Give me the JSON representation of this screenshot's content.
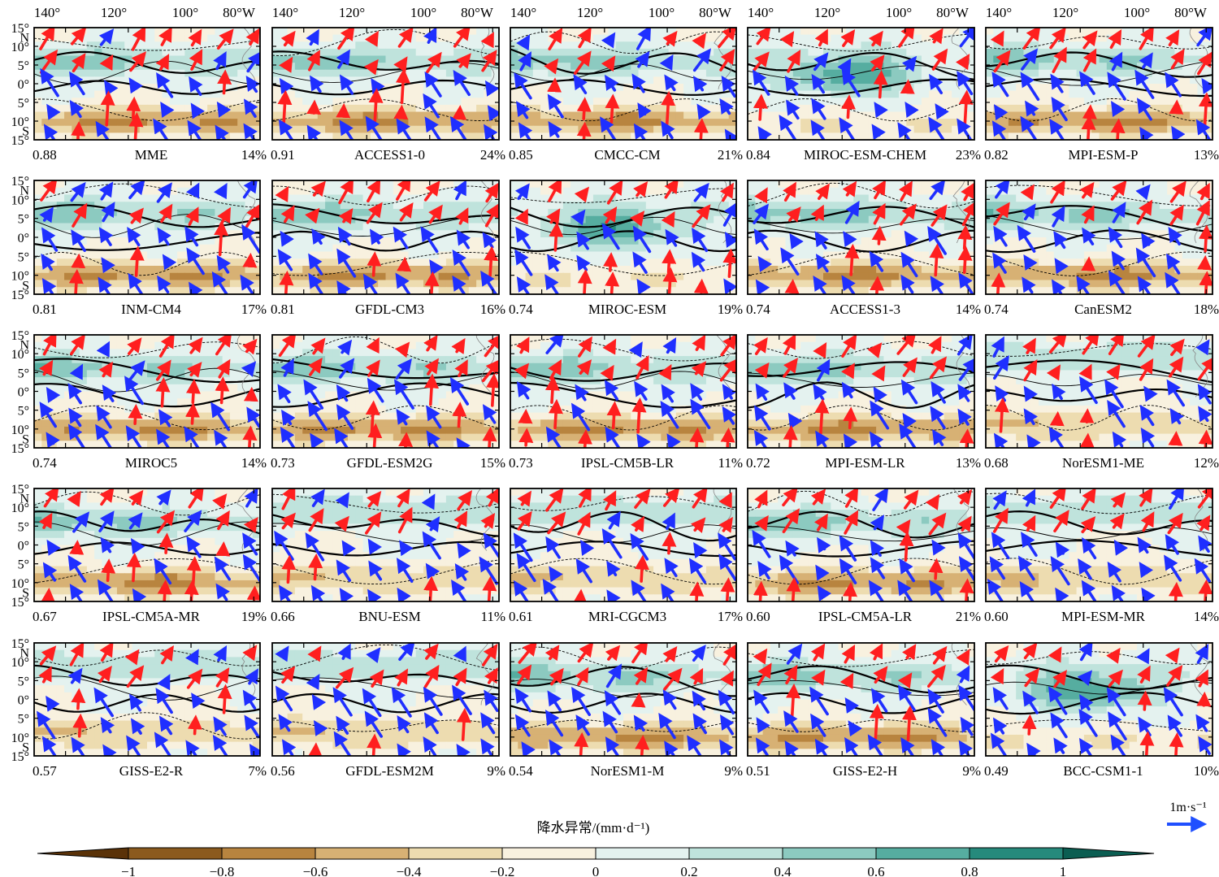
{
  "figure": {
    "lon_ticks": [
      "140°",
      "120°",
      "100°",
      "80°W"
    ],
    "lat_ticks_top": "15°",
    "lat_ticks": [
      {
        "lat": 15,
        "label": "15°"
      },
      {
        "lat": 12.5,
        "label": "N"
      },
      {
        "lat": 10,
        "label": "10°"
      },
      {
        "lat": 5,
        "label": "5°"
      },
      {
        "lat": 0,
        "label": "0°"
      },
      {
        "lat": -5,
        "label": "5°"
      },
      {
        "lat": -10,
        "label": "10°"
      },
      {
        "lat": -12.5,
        "label": "S"
      },
      {
        "lat": -15,
        "label": "15°"
      }
    ],
    "panels": [
      {
        "corr": "0.88",
        "model": "MME",
        "pct": "14%",
        "style": "A",
        "seed": 1
      },
      {
        "corr": "0.91",
        "model": "ACCESS1-0",
        "pct": "24%",
        "style": "A",
        "seed": 2
      },
      {
        "corr": "0.85",
        "model": "CMCC-CM",
        "pct": "21%",
        "style": "A",
        "seed": 3
      },
      {
        "corr": "0.84",
        "model": "MIROC-ESM-CHEM",
        "pct": "23%",
        "style": "C",
        "seed": 4
      },
      {
        "corr": "0.82",
        "model": "MPI-ESM-P",
        "pct": "13%",
        "style": "A",
        "seed": 5
      },
      {
        "corr": "0.81",
        "model": "INM-CM4",
        "pct": "17%",
        "style": "A",
        "seed": 6
      },
      {
        "corr": "0.81",
        "model": "GFDL-CM3",
        "pct": "16%",
        "style": "A",
        "seed": 7
      },
      {
        "corr": "0.74",
        "model": "MIROC-ESM",
        "pct": "19%",
        "style": "C",
        "seed": 8
      },
      {
        "corr": "0.74",
        "model": "ACCESS1-3",
        "pct": "14%",
        "style": "A",
        "seed": 9
      },
      {
        "corr": "0.74",
        "model": "CanESM2",
        "pct": "18%",
        "style": "A",
        "seed": 10
      },
      {
        "corr": "0.74",
        "model": "MIROC5",
        "pct": "14%",
        "style": "A",
        "seed": 11
      },
      {
        "corr": "0.73",
        "model": "GFDL-ESM2G",
        "pct": "15%",
        "style": "A",
        "seed": 12
      },
      {
        "corr": "0.73",
        "model": "IPSL-CM5B-LR",
        "pct": "11%",
        "style": "A",
        "seed": 13
      },
      {
        "corr": "0.72",
        "model": "MPI-ESM-LR",
        "pct": "13%",
        "style": "A",
        "seed": 14
      },
      {
        "corr": "0.68",
        "model": "NorESM1-ME",
        "pct": "12%",
        "style": "B",
        "seed": 15
      },
      {
        "corr": "0.67",
        "model": "IPSL-CM5A-MR",
        "pct": "19%",
        "style": "A",
        "seed": 16
      },
      {
        "corr": "0.66",
        "model": "BNU-ESM",
        "pct": "11%",
        "style": "B",
        "seed": 17
      },
      {
        "corr": "0.61",
        "model": "MRI-CGCM3",
        "pct": "17%",
        "style": "B",
        "seed": 18
      },
      {
        "corr": "0.60",
        "model": "IPSL-CM5A-LR",
        "pct": "21%",
        "style": "A",
        "seed": 19
      },
      {
        "corr": "0.60",
        "model": "MPI-ESM-MR",
        "pct": "14%",
        "style": "B",
        "seed": 20
      },
      {
        "corr": "0.57",
        "model": "GISS-E2-R",
        "pct": "7%",
        "style": "B",
        "seed": 21
      },
      {
        "corr": "0.56",
        "model": "GFDL-ESM2M",
        "pct": "9%",
        "style": "B",
        "seed": 22
      },
      {
        "corr": "0.54",
        "model": "NorESM1-M",
        "pct": "9%",
        "style": "A",
        "seed": 23
      },
      {
        "corr": "0.51",
        "model": "GISS-E2-H",
        "pct": "9%",
        "style": "A",
        "seed": 24
      },
      {
        "corr": "0.49",
        "model": "BCC-CSM1-1",
        "pct": "10%",
        "style": "C",
        "seed": 25
      }
    ]
  },
  "colorbar": {
    "title": "降水异常/(mm·d⁻¹)",
    "ticks": [
      "−1",
      "−0.8",
      "−0.6",
      "−0.4",
      "−0.2",
      "0",
      "0.2",
      "0.4",
      "0.6",
      "0.8",
      "1"
    ],
    "colors": [
      "#5a3208",
      "#8b5a1e",
      "#b8843f",
      "#d7b174",
      "#eddcb0",
      "#f8f1df",
      "#e4f2ef",
      "#bfe3dc",
      "#8ccac0",
      "#56ada0",
      "#268a7c",
      "#0b5e52"
    ]
  },
  "vector_key": {
    "label": "1m·s⁻¹",
    "color": "#1f4fff"
  },
  "map_colors": {
    "frame": "#000000",
    "wind_red": "#ff1f1f",
    "wind_blue": "#1f2fff",
    "coast": "#888888"
  }
}
